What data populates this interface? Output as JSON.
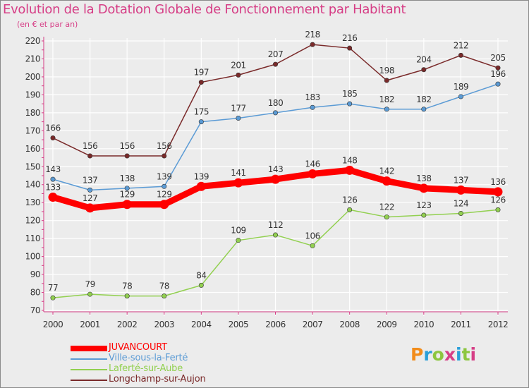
{
  "title": "Evolution de la Dotation Globale de Fonctionnement par Habitant",
  "subtitle": "(en € et par an)",
  "logo": {
    "letters": [
      "P",
      "r",
      "o",
      "x",
      "i",
      "t",
      "i"
    ],
    "colors": [
      "#f28c1a",
      "#2a9fd8",
      "#8cc63f",
      "#d63e86",
      "#2a9fd8",
      "#8cc63f",
      "#d63e86"
    ]
  },
  "chart_data": {
    "type": "line",
    "title": "Evolution de la Dotation Globale de Fonctionnement par Habitant",
    "subtitle": "(en € et par an)",
    "categories": [
      "2000",
      "2001",
      "2002",
      "2003",
      "2004",
      "2005",
      "2006",
      "2007",
      "2008",
      "2009",
      "2010",
      "2011",
      "2012"
    ],
    "ylim": [
      70,
      220
    ],
    "yticks": [
      70,
      80,
      90,
      100,
      110,
      120,
      130,
      140,
      150,
      160,
      170,
      180,
      190,
      200,
      210,
      220
    ],
    "grid": true,
    "series": [
      {
        "name": "Longchamp-sur-Aujon",
        "color": "#7a2a2a",
        "values": [
          166,
          156,
          156,
          156,
          197,
          201,
          207,
          218,
          216,
          198,
          204,
          212,
          205
        ]
      },
      {
        "name": "Ville-sous-la-Ferté",
        "color": "#5b9bd5",
        "values": [
          143,
          137,
          138,
          139,
          175,
          177,
          180,
          183,
          185,
          182,
          182,
          189,
          196
        ]
      },
      {
        "name": "Laferté-sur-Aube",
        "color": "#92d050",
        "values": [
          77,
          79,
          78,
          78,
          84,
          109,
          112,
          106,
          126,
          122,
          123,
          124,
          126
        ]
      },
      {
        "name": "JUVANCOURT",
        "color": "#ff0000",
        "values": [
          133,
          127,
          129,
          129,
          139,
          141,
          143,
          146,
          148,
          142,
          138,
          137,
          136
        ]
      }
    ],
    "legend": [
      {
        "name": "JUVANCOURT",
        "color": "#ff0000",
        "weight": "thick"
      },
      {
        "name": "Ville-sous-la-Ferté",
        "color": "#5b9bd5",
        "weight": "thin"
      },
      {
        "name": "Laferté-sur-Aube",
        "color": "#92d050",
        "weight": "thin"
      },
      {
        "name": "Longchamp-sur-Aujon",
        "color": "#7a2a2a",
        "weight": "thin"
      }
    ],
    "legend_position": "bottom-left"
  }
}
